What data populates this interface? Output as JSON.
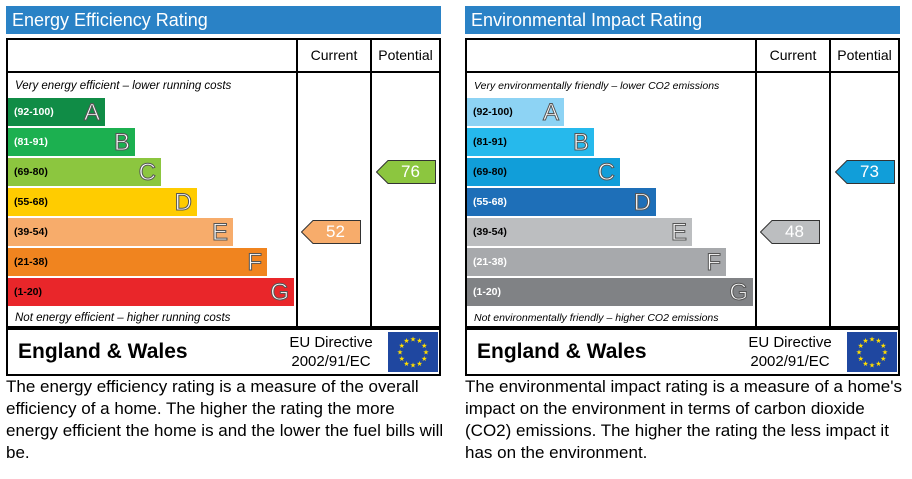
{
  "energy": {
    "title": "Energy Efficiency Rating",
    "col_current": "Current",
    "col_potential": "Potential",
    "top_caption": "Very energy efficient – lower running costs",
    "bottom_caption": "Not energy efficient – higher running costs",
    "bands": [
      {
        "range": "(92-100)",
        "letter": "A",
        "color": "#108c46",
        "text": "#ffffff"
      },
      {
        "range": "(81-91)",
        "letter": "B",
        "color": "#1cb050",
        "text": "#ffffff"
      },
      {
        "range": "(69-80)",
        "letter": "C",
        "color": "#8cc63f",
        "text": "#000000"
      },
      {
        "range": "(55-68)",
        "letter": "D",
        "color": "#ffcc00",
        "text": "#000000"
      },
      {
        "range": "(39-54)",
        "letter": "E",
        "color": "#f7ac6b",
        "text": "#000000"
      },
      {
        "range": "(21-38)",
        "letter": "F",
        "color": "#f0841f",
        "text": "#000000"
      },
      {
        "range": "(1-20)",
        "letter": "G",
        "color": "#e9262a",
        "text": "#000000"
      }
    ],
    "current": {
      "value": "52",
      "band": "E",
      "color": "#f7ac6b"
    },
    "potential": {
      "value": "76",
      "band": "C",
      "color": "#8cc63f"
    },
    "region": "England & Wales",
    "directive_line1": "EU Directive",
    "directive_line2": "2002/91/EC",
    "description": "The energy efficiency rating is a measure of the overall efficiency of a home.  The higher the rating the more energy efficient the home is and the lower the fuel bills will be."
  },
  "environment": {
    "title": "Environmental Impact Rating",
    "col_current": "Current",
    "col_potential": "Potential",
    "top_caption": "Very environmentally friendly – lower CO2 emissions",
    "bottom_caption": "Not environmentally friendly – higher CO2 emissions",
    "bands": [
      {
        "range": "(92-100)",
        "letter": "A",
        "color": "#8dd3f4",
        "text": "#000000"
      },
      {
        "range": "(81-91)",
        "letter": "B",
        "color": "#26b9ec",
        "text": "#000000"
      },
      {
        "range": "(69-80)",
        "letter": "C",
        "color": "#119ed9",
        "text": "#000000"
      },
      {
        "range": "(55-68)",
        "letter": "D",
        "color": "#1e6fb8",
        "text": "#ffffff"
      },
      {
        "range": "(39-54)",
        "letter": "E",
        "color": "#bcbec0",
        "text": "#000000"
      },
      {
        "range": "(21-38)",
        "letter": "F",
        "color": "#a7a9ac",
        "text": "#ffffff"
      },
      {
        "range": "(1-20)",
        "letter": "G",
        "color": "#808285",
        "text": "#ffffff"
      }
    ],
    "current": {
      "value": "48",
      "band": "E",
      "color": "#bcbec0"
    },
    "potential": {
      "value": "73",
      "band": "C",
      "color": "#119ed9"
    },
    "region": "England & Wales",
    "directive_line1": "EU Directive",
    "directive_line2": "2002/91/EC",
    "description": "The environmental impact rating is a measure of a home's impact on the environment in terms of carbon dioxide (CO2) emissions.  The higher the rating the less impact it has on the environment."
  },
  "icons": {
    "eu_flag": "eu-flag-icon"
  }
}
